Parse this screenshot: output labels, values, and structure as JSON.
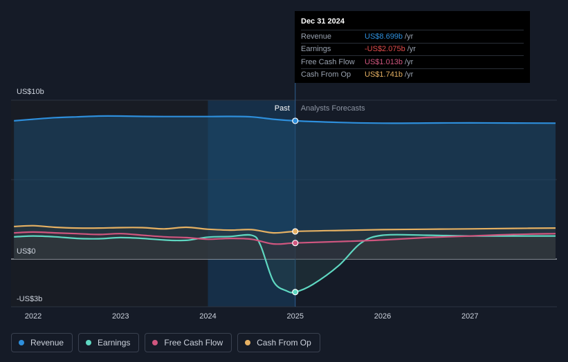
{
  "chart_data": {
    "type": "line",
    "y_unit": "US$ billions",
    "ylim": [
      -3,
      10
    ],
    "y_ticks": [
      {
        "value": 10,
        "label": "US$10b"
      },
      {
        "value": 0,
        "label": "US$0"
      },
      {
        "value": -3,
        "label": "-US$3b"
      }
    ],
    "x_ticks": [
      "2022",
      "2023",
      "2024",
      "2025",
      "2026",
      "2027"
    ],
    "xlim": [
      2021.78,
      2027.98
    ],
    "divider_x": 2025.0,
    "region_labels": {
      "past": "Past",
      "forecast": "Analysts Forecasts"
    },
    "series": [
      {
        "name": "Revenue",
        "color": "#2e8fdc",
        "x": [
          2021.78,
          2022.0,
          2022.25,
          2022.5,
          2022.75,
          2023.0,
          2023.25,
          2023.5,
          2023.75,
          2024.0,
          2024.25,
          2024.5,
          2024.75,
          2025.0,
          2025.5,
          2026.0,
          2026.5,
          2027.0,
          2027.5,
          2027.98
        ],
        "y": [
          8.7,
          8.8,
          8.9,
          8.95,
          9.0,
          9.0,
          8.98,
          8.97,
          8.97,
          8.97,
          8.98,
          8.95,
          8.8,
          8.699,
          8.6,
          8.55,
          8.56,
          8.57,
          8.56,
          8.55
        ]
      },
      {
        "name": "Earnings",
        "color": "#5fd8c2",
        "x": [
          2021.78,
          2022.0,
          2022.25,
          2022.5,
          2022.75,
          2023.0,
          2023.25,
          2023.5,
          2023.75,
          2024.0,
          2024.25,
          2024.5,
          2024.6,
          2024.75,
          2024.9,
          2025.0,
          2025.2,
          2025.5,
          2025.75,
          2026.0,
          2026.5,
          2027.0,
          2027.5,
          2027.98
        ],
        "y": [
          1.4,
          1.45,
          1.4,
          1.3,
          1.28,
          1.35,
          1.3,
          1.2,
          1.18,
          1.38,
          1.42,
          1.5,
          0.9,
          -1.4,
          -2.0,
          -2.075,
          -1.6,
          -0.4,
          1.0,
          1.5,
          1.5,
          1.45,
          1.45,
          1.45
        ]
      },
      {
        "name": "Free Cash Flow",
        "color": "#d0567f",
        "x": [
          2021.78,
          2022.0,
          2022.25,
          2022.5,
          2022.75,
          2023.0,
          2023.25,
          2023.5,
          2023.75,
          2024.0,
          2024.25,
          2024.5,
          2024.75,
          2025.0,
          2025.5,
          2026.0,
          2026.5,
          2027.0,
          2027.5,
          2027.98
        ],
        "y": [
          1.65,
          1.7,
          1.65,
          1.6,
          1.55,
          1.6,
          1.5,
          1.4,
          1.35,
          1.25,
          1.3,
          1.25,
          0.95,
          1.013,
          1.1,
          1.2,
          1.35,
          1.45,
          1.55,
          1.6
        ]
      },
      {
        "name": "Cash From Op",
        "color": "#e6b163",
        "x": [
          2021.78,
          2022.0,
          2022.25,
          2022.5,
          2022.75,
          2023.0,
          2023.25,
          2023.5,
          2023.75,
          2024.0,
          2024.25,
          2024.5,
          2024.75,
          2025.0,
          2025.5,
          2026.0,
          2026.5,
          2027.0,
          2027.5,
          2027.98
        ],
        "y": [
          2.05,
          2.1,
          2.0,
          1.95,
          1.95,
          1.98,
          1.98,
          1.9,
          2.0,
          1.88,
          1.82,
          1.85,
          1.65,
          1.741,
          1.8,
          1.85,
          1.88,
          1.9,
          1.93,
          1.95
        ]
      }
    ],
    "grid": true,
    "legend_position": "bottom-left"
  },
  "tooltip": {
    "date": "Dec 31 2024",
    "rows": [
      {
        "label": "Revenue",
        "value": "US$8.699b",
        "unit": "/yr",
        "color": "#2e8fdc"
      },
      {
        "label": "Earnings",
        "value": "-US$2.075b",
        "unit": "/yr",
        "color": "#e24c4c"
      },
      {
        "label": "Free Cash Flow",
        "value": "US$1.013b",
        "unit": "/yr",
        "color": "#d0567f"
      },
      {
        "label": "Cash From Op",
        "value": "US$1.741b",
        "unit": "/yr",
        "color": "#e6b163"
      }
    ]
  },
  "legend": [
    {
      "label": "Revenue",
      "color": "#2e8fdc"
    },
    {
      "label": "Earnings",
      "color": "#5fd8c2"
    },
    {
      "label": "Free Cash Flow",
      "color": "#d0567f"
    },
    {
      "label": "Cash From Op",
      "color": "#e6b163"
    }
  ]
}
